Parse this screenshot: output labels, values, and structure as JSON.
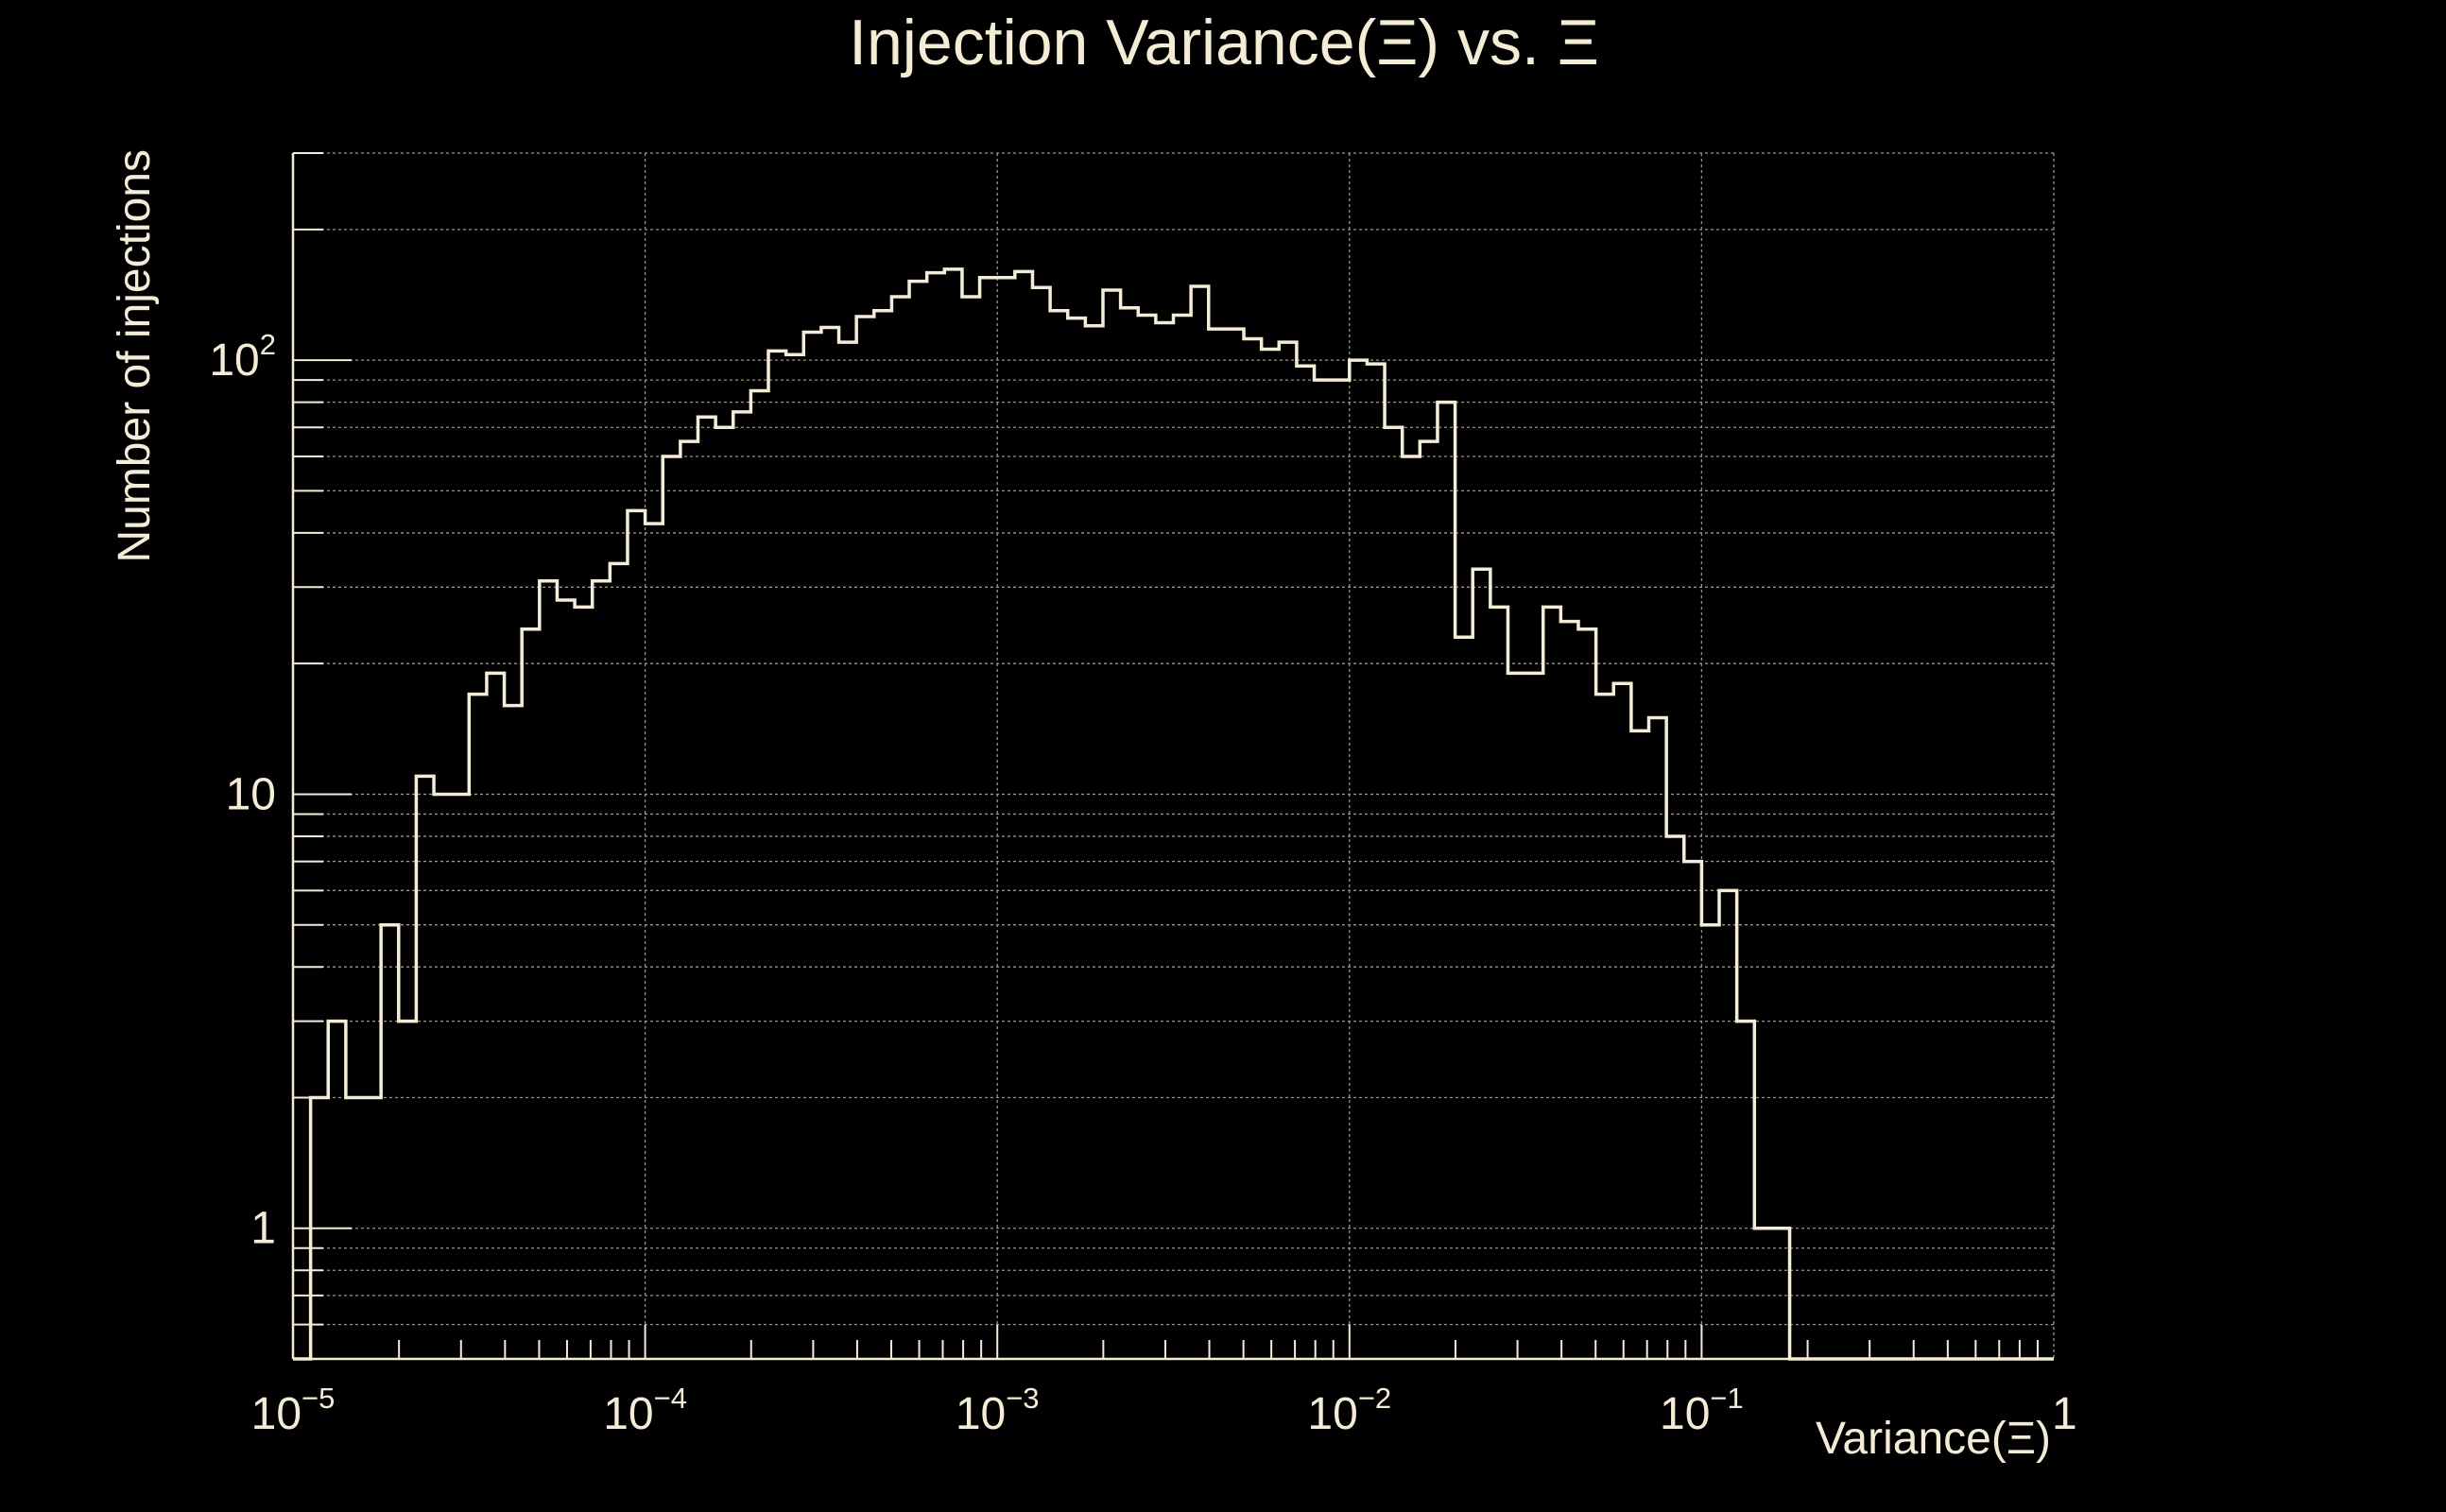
{
  "colors": {
    "background": "#000000",
    "foreground": "#f5ecd4",
    "grid": "#9a9684"
  },
  "chart_data": {
    "type": "histogram",
    "title": "Injection Variance(Ξ) vs. Ξ",
    "xlabel": "Variance(Ξ)",
    "ylabel": "Number of injections",
    "x_scale": "log",
    "y_scale": "log",
    "xlim": [
      1e-05,
      1
    ],
    "ylim": [
      0.5,
      300
    ],
    "grid": true,
    "legend": "none",
    "x_ticks": [
      {
        "value": 1e-05,
        "base": "10",
        "exp": "−5"
      },
      {
        "value": 0.0001,
        "base": "10",
        "exp": "−4"
      },
      {
        "value": 0.001,
        "base": "10",
        "exp": "−3"
      },
      {
        "value": 0.01,
        "base": "10",
        "exp": "−2"
      },
      {
        "value": 0.1,
        "base": "10",
        "exp": "−1"
      },
      {
        "value": 1,
        "base": "1",
        "exp": ""
      }
    ],
    "y_ticks": [
      {
        "value": 1,
        "base": "1",
        "exp": ""
      },
      {
        "value": 10,
        "base": "10",
        "exp": ""
      },
      {
        "value": 100,
        "base": "10",
        "exp": "2"
      }
    ],
    "bin_edges_log10": [
      -5,
      -4.95,
      -4.9,
      -4.85,
      -4.8,
      -4.75,
      -4.7,
      -4.65,
      -4.6,
      -4.55,
      -4.5,
      -4.45,
      -4.4,
      -4.35,
      -4.3,
      -4.25,
      -4.2,
      -4.15,
      -4.1,
      -4.05,
      -4,
      -3.95,
      -3.9,
      -3.85,
      -3.8,
      -3.75,
      -3.7,
      -3.65,
      -3.6,
      -3.55,
      -3.5,
      -3.45,
      -3.4,
      -3.35,
      -3.3,
      -3.25,
      -3.2,
      -3.15,
      -3.1,
      -3.05,
      -3,
      -2.95,
      -2.9,
      -2.85,
      -2.8,
      -2.75,
      -2.7,
      -2.65,
      -2.6,
      -2.55,
      -2.5,
      -2.45,
      -2.4,
      -2.35,
      -2.3,
      -2.25,
      -2.2,
      -2.15,
      -2.1,
      -2.05,
      -2,
      -1.95,
      -1.9,
      -1.85,
      -1.8,
      -1.75,
      -1.7,
      -1.65,
      -1.6,
      -1.55,
      -1.5,
      -1.45,
      -1.4,
      -1.35,
      -1.3,
      -1.25,
      -1.2,
      -1.15,
      -1.1,
      -1.05,
      -1,
      -0.95,
      -0.9,
      -0.85,
      -0.8,
      -0.75,
      -0.7,
      -0.65,
      -0.6,
      -0.55,
      -0.5,
      -0.45,
      -0.4,
      -0.35,
      -0.3,
      -0.25,
      -0.2,
      -0.15,
      -0.1,
      -0.05,
      0
    ],
    "counts": [
      0,
      2,
      3,
      2,
      2,
      5,
      3,
      11,
      10,
      10,
      17,
      19,
      16,
      24,
      31,
      28,
      27,
      31,
      34,
      45,
      42,
      60,
      65,
      74,
      70,
      76,
      85,
      105,
      103,
      116,
      119,
      110,
      126,
      130,
      140,
      152,
      159,
      162,
      140,
      155,
      155,
      160,
      147,
      130,
      125,
      120,
      145,
      132,
      127,
      122,
      127,
      148,
      118,
      118,
      112,
      106,
      110,
      97,
      90,
      90,
      100,
      98,
      70,
      60,
      65,
      80,
      23,
      33,
      27,
      19,
      19,
      27,
      25,
      24,
      17,
      18,
      14,
      15,
      8,
      7,
      5,
      6,
      3,
      1,
      1,
      0,
      0,
      0,
      0,
      0,
      0,
      0,
      0,
      0,
      0,
      0,
      0,
      0,
      0,
      0,
      0
    ]
  }
}
